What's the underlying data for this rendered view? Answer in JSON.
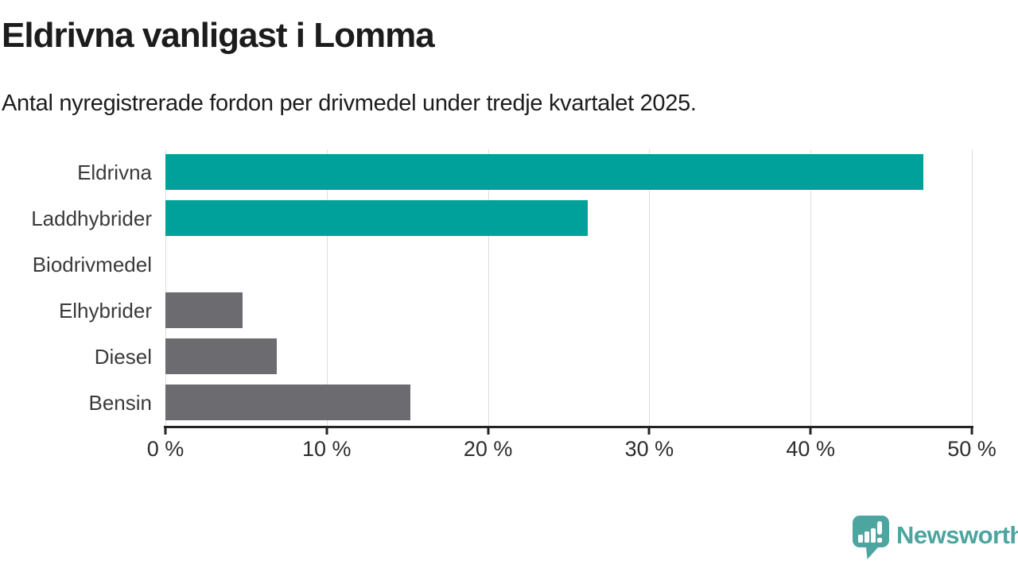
{
  "header": {
    "title": "Eldrivna vanligast i Lomma",
    "subtitle": "Antal nyregistrerade fordon per drivmedel under tredje kvartalet 2025."
  },
  "chart_data": {
    "type": "bar",
    "orientation": "horizontal",
    "title": "Eldrivna vanligast i Lomma",
    "subtitle": "Antal nyregistrerade fordon per drivmedel under tredje kvartalet 2025.",
    "categories": [
      "Eldrivna",
      "Laddhybrider",
      "Biodrivmedel",
      "Elhybrider",
      "Diesel",
      "Bensin"
    ],
    "values": [
      47,
      26.2,
      0,
      4.8,
      6.9,
      15.2
    ],
    "unit": "%",
    "xlabel": "",
    "ylabel": "",
    "xlim": [
      0,
      50
    ],
    "x_ticks": [
      {
        "value": 0,
        "label": "0 %"
      },
      {
        "value": 10,
        "label": "10 %"
      },
      {
        "value": 20,
        "label": "20 %"
      },
      {
        "value": 30,
        "label": "30 %"
      },
      {
        "value": 40,
        "label": "40 %"
      },
      {
        "value": 50,
        "label": "50 %"
      }
    ],
    "bar_colors": [
      "#00a19a",
      "#00a19a",
      "#6c6b70",
      "#6c6b70",
      "#6c6b70",
      "#6c6b70"
    ],
    "grid": "vertical",
    "legend": "none"
  },
  "colors": {
    "highlight": "#00a19a",
    "default_bar": "#6c6b70",
    "gridline": "#dddddd",
    "axis": "#242424",
    "brand": "#4da5a0"
  },
  "footer": {
    "brand": "Newsworthy"
  }
}
